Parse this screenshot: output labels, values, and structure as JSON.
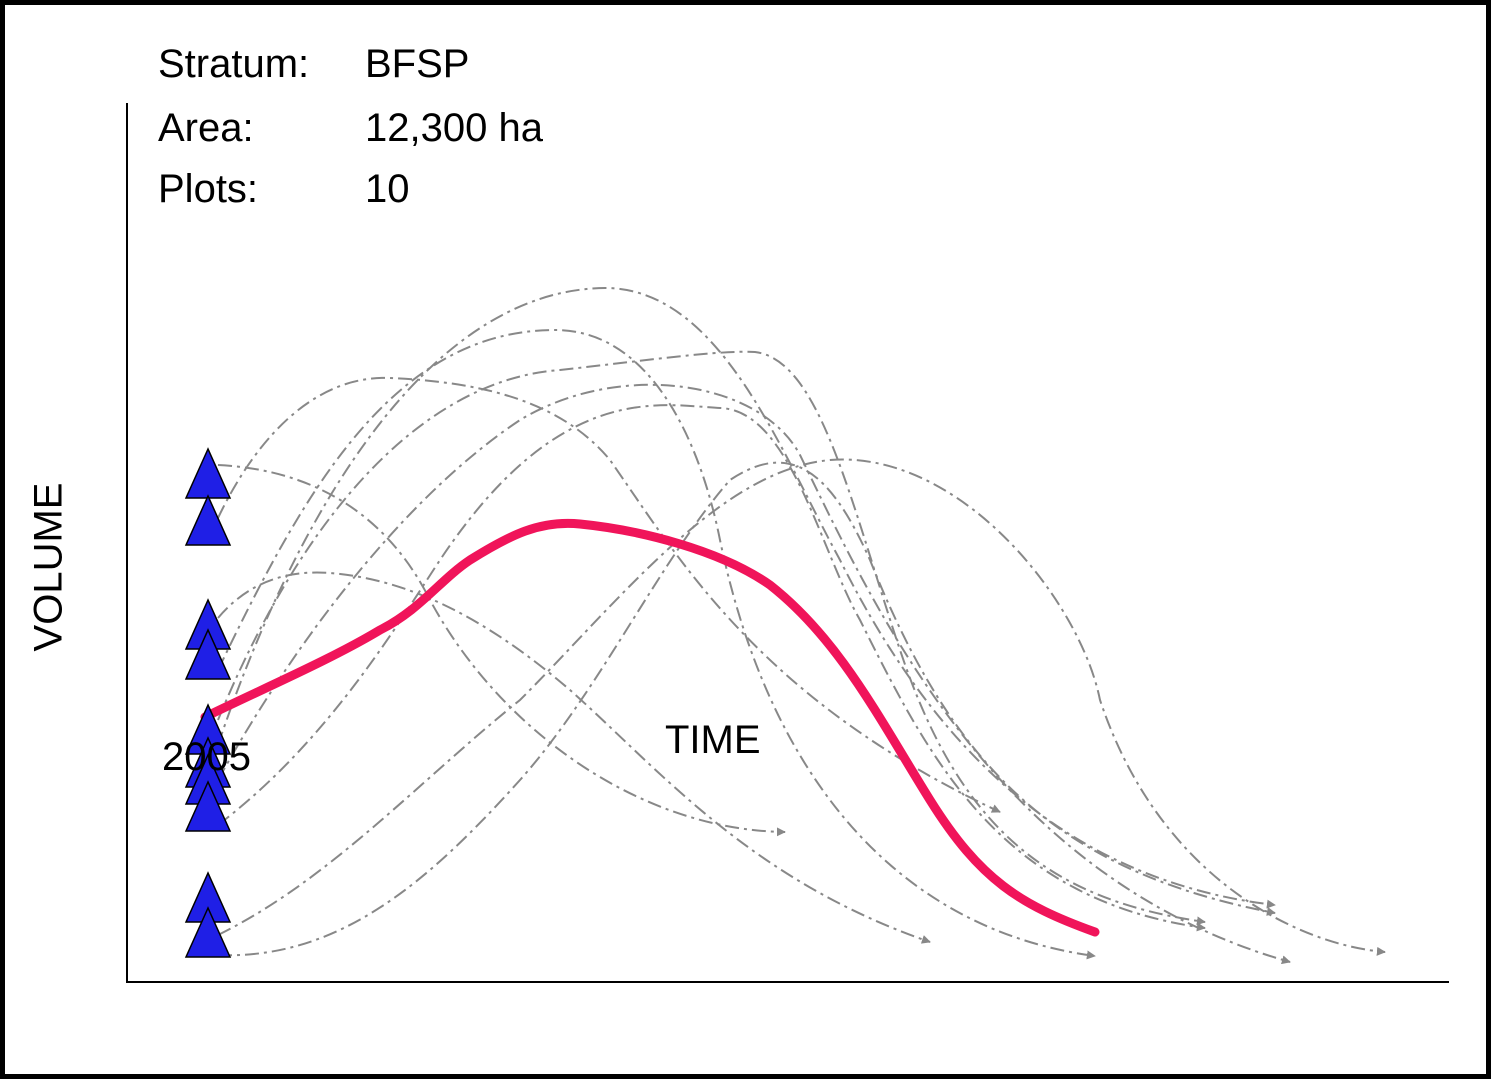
{
  "info": {
    "stratum_label": "Stratum:",
    "stratum_value": "BFSP",
    "area_label": "Area:",
    "area_value": "12,300 ha",
    "plots_label": "Plots:",
    "plots_value": "10"
  },
  "axes": {
    "x_label": "TIME",
    "y_label": "VOLUME",
    "x_start": "2005"
  },
  "colors": {
    "background": "#000000",
    "canvas": "#ffffff",
    "plot_marker": "#1f1fe6",
    "plot_projection": "#888888",
    "stratum_average": "#f0145a",
    "axis": "#000000"
  },
  "markers": {
    "icon": "triangle-up-icon",
    "count": 10
  }
}
